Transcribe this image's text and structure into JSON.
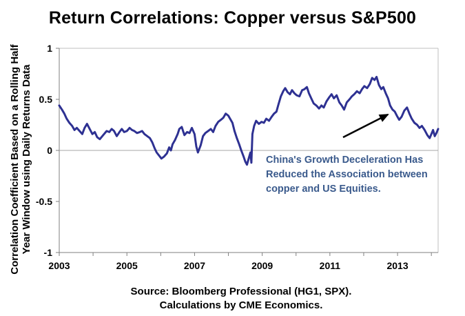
{
  "chart_data": {
    "type": "line",
    "title": "Return Correlations: Copper versus S&P500",
    "ylabel": "Correlation Coefficient Based on a Rolling Half Year Window using Daily Returns Data",
    "xlabel": "",
    "source_line1": "Source: Bloomberg Professional (HG1, SPX).",
    "source_line2": "Calculations by CME Economics.",
    "annotation": "China's Growth Deceleration Has Reduced the Association between copper and US Equities.",
    "ylim": [
      -1,
      1
    ],
    "xlim": [
      2003,
      2014.2
    ],
    "yticks": [
      1,
      0.5,
      0,
      -0.5,
      -1
    ],
    "ytick_labels": [
      "1",
      "0.5",
      "0",
      "-0.5",
      "-1"
    ],
    "xticks": [
      2003,
      2005,
      2007,
      2009,
      2011,
      2013
    ],
    "xtick_labels": [
      "2003",
      "2005",
      "2007",
      "2009",
      "2011",
      "2013"
    ],
    "grid": false,
    "line_color": "#2e3192",
    "annotation_color": "#3a5a8c",
    "series": [
      {
        "values": [
          [
            2003.0,
            0.44
          ],
          [
            2003.08,
            0.4
          ],
          [
            2003.15,
            0.36
          ],
          [
            2003.22,
            0.31
          ],
          [
            2003.3,
            0.27
          ],
          [
            2003.38,
            0.24
          ],
          [
            2003.45,
            0.2
          ],
          [
            2003.52,
            0.22
          ],
          [
            2003.6,
            0.19
          ],
          [
            2003.68,
            0.16
          ],
          [
            2003.75,
            0.22
          ],
          [
            2003.82,
            0.26
          ],
          [
            2003.9,
            0.21
          ],
          [
            2003.98,
            0.16
          ],
          [
            2004.05,
            0.18
          ],
          [
            2004.12,
            0.13
          ],
          [
            2004.2,
            0.11
          ],
          [
            2004.3,
            0.15
          ],
          [
            2004.4,
            0.19
          ],
          [
            2004.48,
            0.18
          ],
          [
            2004.55,
            0.21
          ],
          [
            2004.62,
            0.19
          ],
          [
            2004.7,
            0.14
          ],
          [
            2004.78,
            0.18
          ],
          [
            2004.85,
            0.21
          ],
          [
            2004.92,
            0.18
          ],
          [
            2005.0,
            0.19
          ],
          [
            2005.08,
            0.22
          ],
          [
            2005.15,
            0.2
          ],
          [
            2005.22,
            0.19
          ],
          [
            2005.3,
            0.17
          ],
          [
            2005.38,
            0.18
          ],
          [
            2005.45,
            0.19
          ],
          [
            2005.52,
            0.16
          ],
          [
            2005.6,
            0.14
          ],
          [
            2005.68,
            0.12
          ],
          [
            2005.75,
            0.08
          ],
          [
            2005.82,
            0.02
          ],
          [
            2005.88,
            -0.02
          ],
          [
            2005.95,
            -0.05
          ],
          [
            2006.02,
            -0.08
          ],
          [
            2006.1,
            -0.06
          ],
          [
            2006.18,
            -0.03
          ],
          [
            2006.25,
            0.03
          ],
          [
            2006.3,
            0.0
          ],
          [
            2006.35,
            0.06
          ],
          [
            2006.42,
            0.1
          ],
          [
            2006.5,
            0.16
          ],
          [
            2006.55,
            0.21
          ],
          [
            2006.62,
            0.23
          ],
          [
            2006.7,
            0.15
          ],
          [
            2006.78,
            0.18
          ],
          [
            2006.85,
            0.17
          ],
          [
            2006.92,
            0.22
          ],
          [
            2007.0,
            0.16
          ],
          [
            2007.05,
            0.04
          ],
          [
            2007.1,
            -0.02
          ],
          [
            2007.18,
            0.05
          ],
          [
            2007.25,
            0.14
          ],
          [
            2007.32,
            0.17
          ],
          [
            2007.4,
            0.19
          ],
          [
            2007.48,
            0.21
          ],
          [
            2007.55,
            0.18
          ],
          [
            2007.62,
            0.24
          ],
          [
            2007.7,
            0.28
          ],
          [
            2007.78,
            0.3
          ],
          [
            2007.85,
            0.32
          ],
          [
            2007.92,
            0.36
          ],
          [
            2008.0,
            0.34
          ],
          [
            2008.05,
            0.31
          ],
          [
            2008.12,
            0.27
          ],
          [
            2008.18,
            0.19
          ],
          [
            2008.25,
            0.12
          ],
          [
            2008.32,
            0.06
          ],
          [
            2008.38,
            0.0
          ],
          [
            2008.45,
            -0.06
          ],
          [
            2008.5,
            -0.11
          ],
          [
            2008.55,
            -0.14
          ],
          [
            2008.6,
            -0.08
          ],
          [
            2008.65,
            -0.02
          ],
          [
            2008.68,
            -0.12
          ],
          [
            2008.71,
            0.16
          ],
          [
            2008.76,
            0.24
          ],
          [
            2008.82,
            0.29
          ],
          [
            2008.9,
            0.26
          ],
          [
            2008.98,
            0.28
          ],
          [
            2009.05,
            0.27
          ],
          [
            2009.12,
            0.31
          ],
          [
            2009.2,
            0.29
          ],
          [
            2009.28,
            0.33
          ],
          [
            2009.35,
            0.36
          ],
          [
            2009.42,
            0.38
          ],
          [
            2009.48,
            0.45
          ],
          [
            2009.55,
            0.53
          ],
          [
            2009.62,
            0.58
          ],
          [
            2009.68,
            0.61
          ],
          [
            2009.75,
            0.57
          ],
          [
            2009.82,
            0.55
          ],
          [
            2009.88,
            0.59
          ],
          [
            2009.95,
            0.56
          ],
          [
            2010.02,
            0.54
          ],
          [
            2010.1,
            0.53
          ],
          [
            2010.18,
            0.59
          ],
          [
            2010.25,
            0.6
          ],
          [
            2010.32,
            0.62
          ],
          [
            2010.38,
            0.56
          ],
          [
            2010.45,
            0.51
          ],
          [
            2010.52,
            0.46
          ],
          [
            2010.6,
            0.44
          ],
          [
            2010.68,
            0.41
          ],
          [
            2010.75,
            0.44
          ],
          [
            2010.82,
            0.42
          ],
          [
            2010.9,
            0.48
          ],
          [
            2010.98,
            0.52
          ],
          [
            2011.05,
            0.55
          ],
          [
            2011.12,
            0.51
          ],
          [
            2011.2,
            0.54
          ],
          [
            2011.28,
            0.47
          ],
          [
            2011.35,
            0.44
          ],
          [
            2011.42,
            0.4
          ],
          [
            2011.5,
            0.47
          ],
          [
            2011.58,
            0.5
          ],
          [
            2011.65,
            0.53
          ],
          [
            2011.72,
            0.55
          ],
          [
            2011.8,
            0.58
          ],
          [
            2011.88,
            0.56
          ],
          [
            2011.95,
            0.6
          ],
          [
            2012.02,
            0.63
          ],
          [
            2012.1,
            0.61
          ],
          [
            2012.18,
            0.65
          ],
          [
            2012.25,
            0.71
          ],
          [
            2012.32,
            0.69
          ],
          [
            2012.38,
            0.72
          ],
          [
            2012.45,
            0.64
          ],
          [
            2012.52,
            0.6
          ],
          [
            2012.58,
            0.62
          ],
          [
            2012.65,
            0.56
          ],
          [
            2012.72,
            0.51
          ],
          [
            2012.78,
            0.44
          ],
          [
            2012.85,
            0.4
          ],
          [
            2012.92,
            0.38
          ],
          [
            2012.98,
            0.34
          ],
          [
            2013.05,
            0.3
          ],
          [
            2013.12,
            0.33
          ],
          [
            2013.2,
            0.39
          ],
          [
            2013.28,
            0.42
          ],
          [
            2013.35,
            0.36
          ],
          [
            2013.42,
            0.31
          ],
          [
            2013.5,
            0.27
          ],
          [
            2013.58,
            0.25
          ],
          [
            2013.65,
            0.22
          ],
          [
            2013.72,
            0.24
          ],
          [
            2013.8,
            0.2
          ],
          [
            2013.88,
            0.15
          ],
          [
            2013.95,
            0.12
          ],
          [
            2014.0,
            0.16
          ],
          [
            2014.05,
            0.2
          ],
          [
            2014.1,
            0.14
          ],
          [
            2014.15,
            0.17
          ],
          [
            2014.2,
            0.21
          ]
        ]
      }
    ]
  }
}
